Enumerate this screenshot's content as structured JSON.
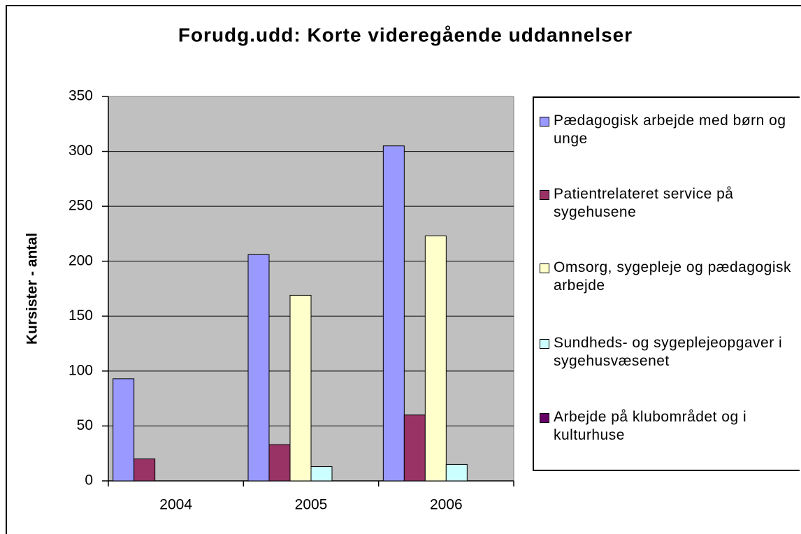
{
  "chart_data": {
    "type": "bar",
    "title": "Forudg.udd: Korte videregående uddannelser",
    "y_label": "Kursister - antal",
    "categories": [
      "2004",
      "2005",
      "2006"
    ],
    "series": [
      {
        "name": "Pædagogisk arbejde med børn og unge",
        "color": "#9999ff",
        "values": [
          93,
          206,
          305
        ]
      },
      {
        "name": "Patientrelateret service på sygehusene",
        "color": "#993366",
        "values": [
          20,
          33,
          60
        ]
      },
      {
        "name": "Omsorg, sygepleje og pædagogisk arbejde",
        "color": "#ffffcc",
        "values": [
          null,
          169,
          223
        ]
      },
      {
        "name": "Sundheds- og sygeplejeopgaver i sygehusvæsenet",
        "color": "#ccffff",
        "values": [
          null,
          13,
          15
        ]
      },
      {
        "name": "Arbejde på klubområdet og i kulturhuse",
        "color": "#660066",
        "values": [
          null,
          null,
          null
        ]
      }
    ],
    "ylim": [
      0,
      350
    ],
    "yticks": [
      0,
      50,
      100,
      150,
      200,
      250,
      300,
      350
    ],
    "grid": true,
    "legend": "right"
  }
}
